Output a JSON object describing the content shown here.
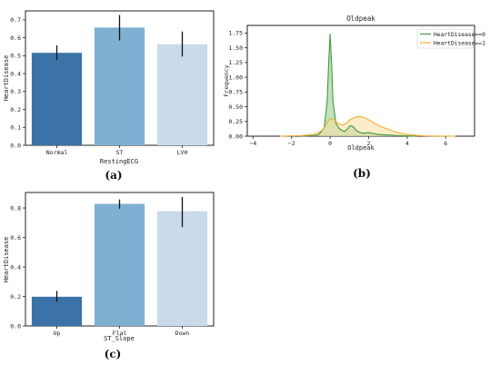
{
  "colors": {
    "bar1": "#3b73a8",
    "bar2": "#7fb0d2",
    "bar3": "#c9dbea",
    "err": "#111111",
    "kde0": "#3f9a3f",
    "kde0_fill": "#8ec98a",
    "kde1": "#f2b030",
    "kde1_fill": "#f7dfa3"
  },
  "panels": {
    "a": {
      "label": "(a)"
    },
    "b": {
      "label": "(b)"
    },
    "c": {
      "label": "(c)"
    }
  },
  "chart_data": [
    {
      "id": "a",
      "type": "bar",
      "title": "",
      "xlabel": "RestingECG",
      "ylabel": "HeartDisease",
      "categories": [
        "Normal",
        "ST",
        "LVH"
      ],
      "values": [
        0.516,
        0.657,
        0.564
      ],
      "err_low": [
        0.477,
        0.585,
        0.495
      ],
      "err_high": [
        0.558,
        0.727,
        0.635
      ],
      "ylim": [
        0,
        0.75
      ],
      "yticks": [
        0.0,
        0.1,
        0.2,
        0.3,
        0.4,
        0.5,
        0.6,
        0.7
      ],
      "ytick_labels": [
        "0.0",
        "0.1",
        "0.2",
        "0.3",
        "0.4",
        "0.5",
        "0.6",
        "0.7"
      ],
      "grid": false
    },
    {
      "id": "b",
      "type": "area",
      "title": "Oldpeak",
      "xlabel": "Oldpeak",
      "ylabel": "Frequency",
      "xlim": [
        -4.3,
        7.5
      ],
      "ylim": [
        0,
        1.88
      ],
      "xticks": [
        -4,
        -2,
        0,
        2,
        4,
        6
      ],
      "xtick_labels": [
        "−4",
        "−2",
        "0",
        "2",
        "4",
        "6"
      ],
      "yticks": [
        0.0,
        0.25,
        0.5,
        0.75,
        1.0,
        1.25,
        1.5,
        1.75
      ],
      "ytick_labels": [
        "0.00",
        "0.25",
        "0.50",
        "0.75",
        "1.00",
        "1.25",
        "1.50",
        "1.75"
      ],
      "legend_position": "top-right",
      "grid": false,
      "series": [
        {
          "name": "HeartDisease==0",
          "x": [
            -1.5,
            -0.6,
            -0.3,
            -0.15,
            -0.08,
            0.0,
            0.08,
            0.15,
            0.3,
            0.45,
            0.6,
            0.75,
            0.9,
            1.05,
            1.2,
            1.35,
            1.5,
            1.7,
            2.0,
            2.5,
            3.0,
            3.5,
            4.0,
            4.5
          ],
          "y": [
            0.0,
            0.02,
            0.15,
            0.6,
            1.2,
            1.74,
            1.2,
            0.6,
            0.22,
            0.14,
            0.1,
            0.08,
            0.12,
            0.18,
            0.16,
            0.1,
            0.07,
            0.05,
            0.06,
            0.03,
            0.02,
            0.01,
            0.005,
            0.0
          ]
        },
        {
          "name": "HeartDisease==1",
          "x": [
            -2.6,
            -1.5,
            -0.8,
            -0.4,
            -0.2,
            0.0,
            0.2,
            0.4,
            0.6,
            0.8,
            1.0,
            1.2,
            1.4,
            1.6,
            1.8,
            2.0,
            2.3,
            2.6,
            3.0,
            3.5,
            4.0,
            4.5,
            5.0,
            5.8,
            6.5
          ],
          "y": [
            0.0,
            0.01,
            0.03,
            0.1,
            0.2,
            0.3,
            0.28,
            0.22,
            0.19,
            0.21,
            0.27,
            0.31,
            0.33,
            0.33,
            0.31,
            0.28,
            0.22,
            0.17,
            0.12,
            0.06,
            0.03,
            0.015,
            0.005,
            0.002,
            0.0
          ]
        }
      ]
    },
    {
      "id": "c",
      "type": "bar",
      "title": "",
      "xlabel": "ST_Slope",
      "ylabel": "HeartDisease",
      "categories": [
        "Up",
        "Flat",
        "Down"
      ],
      "values": [
        0.198,
        0.828,
        0.778
      ],
      "err_low": [
        0.165,
        0.795,
        0.67
      ],
      "err_high": [
        0.238,
        0.858,
        0.875
      ],
      "ylim": [
        0,
        0.905
      ],
      "yticks": [
        0.0,
        0.2,
        0.4,
        0.6,
        0.8
      ],
      "ytick_labels": [
        "0.0",
        "0.2",
        "0.4",
        "0.6",
        "0.8"
      ],
      "grid": false
    }
  ]
}
